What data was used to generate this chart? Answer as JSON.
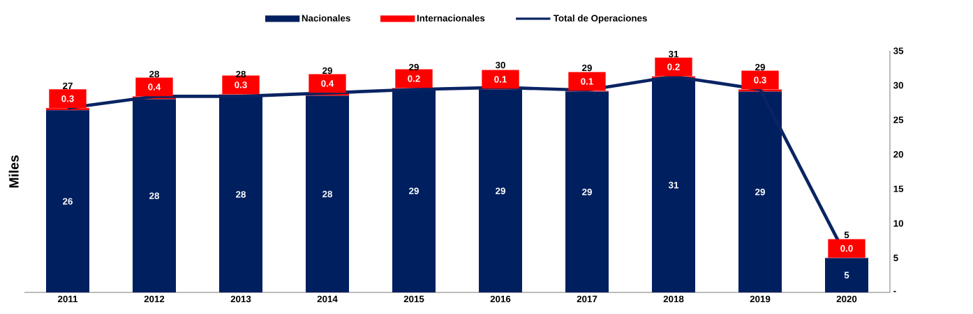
{
  "chart_data": {
    "type": "bar",
    "stacked": true,
    "ylabel": "Miles",
    "legend": "top",
    "grid": false,
    "categories": [
      "2011",
      "2012",
      "2013",
      "2014",
      "2015",
      "2016",
      "2017",
      "2018",
      "2019",
      "2020"
    ],
    "ylim": [
      0,
      35
    ],
    "yticks": [
      {
        "value": 0,
        "label": "-"
      },
      5,
      10,
      15,
      20,
      25,
      30,
      35
    ],
    "series": [
      {
        "name": "Nacionales",
        "color": "#001f5f",
        "values": [
          26.4,
          28.0,
          28.4,
          28.5,
          29.4,
          29.4,
          29.1,
          31.1,
          29.1,
          5.0
        ],
        "value_labels": [
          "26",
          "28",
          "28",
          "28",
          "29",
          "29",
          "29",
          "31",
          "29",
          "5"
        ]
      },
      {
        "name": "Internacionales",
        "color": "#ff0000",
        "values": [
          0.3,
          0.4,
          0.3,
          0.4,
          0.2,
          0.1,
          0.1,
          0.2,
          0.3,
          0.0
        ],
        "value_labels": [
          "0.3",
          "0.4",
          "0.3",
          "0.4",
          "0.2",
          "0.1",
          "0.1",
          "0.2",
          "0.3",
          "0.0"
        ]
      },
      {
        "name": "Total de Operaciones",
        "type": "line",
        "color": "#0a2463",
        "values": [
          26.7,
          28.4,
          28.4,
          28.9,
          29.4,
          29.7,
          29.3,
          31.3,
          29.4,
          5.1
        ],
        "value_labels": [
          "27",
          "28",
          "28",
          "29",
          "29",
          "30",
          "29",
          "31",
          "29",
          "5"
        ]
      }
    ]
  }
}
